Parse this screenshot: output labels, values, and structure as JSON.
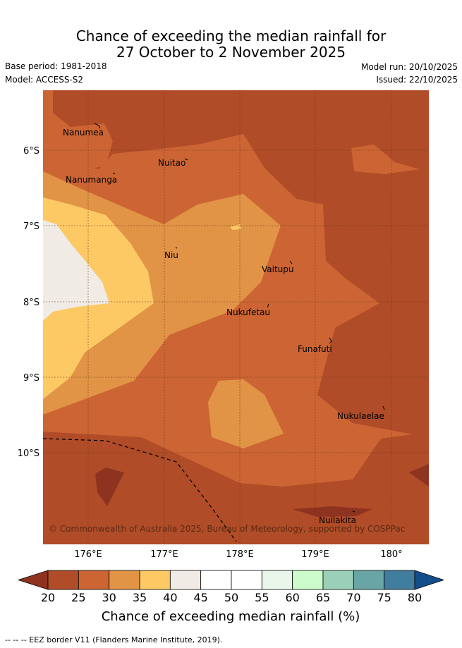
{
  "header": {
    "title_line1": "Chance of exceeding the median rainfall for",
    "title_line2": "27 October to 2 November 2025",
    "base_period": "Base period: 1981-2018",
    "model": "Model: ACCESS-S2",
    "model_run": "Model run: 20/10/2025",
    "issued": "Issued: 22/10/2025"
  },
  "map": {
    "lon_ticks": [
      "176°E",
      "177°E",
      "178°E",
      "179°E",
      "180°"
    ],
    "lat_ticks": [
      "6°S",
      "7°S",
      "8°S",
      "9°S",
      "10°S"
    ],
    "places": [
      "Nanumea",
      "Nuitao",
      "Nanumanga",
      "Niu",
      "Vaitupu",
      "Nukufetau",
      "Funafuti",
      "Nukulaelae",
      "Nuilakita"
    ],
    "copyright": "© Commonwealth of Australia 2025, Bureau of Meteorology, supported by COSPPac"
  },
  "colorbar": {
    "ticks": [
      "20",
      "25",
      "30",
      "35",
      "40",
      "45",
      "50",
      "55",
      "60",
      "65",
      "70",
      "75",
      "80"
    ],
    "colors": [
      "#8e3320",
      "#b04c28",
      "#cc6533",
      "#e19446",
      "#fcc965",
      "#f0ebe5",
      "#ffffff",
      "#ffffff",
      "#eaf6ea",
      "#ccfbcc",
      "#9ccfb8",
      "#6aa5a5",
      "#417d9c",
      "#134e8a"
    ],
    "label": "Chance of exceeding median rainfall (%)"
  },
  "footer": {
    "eez_note": "--  --  -- EEZ border V11 (Flanders Marine Institute, 2019)."
  }
}
